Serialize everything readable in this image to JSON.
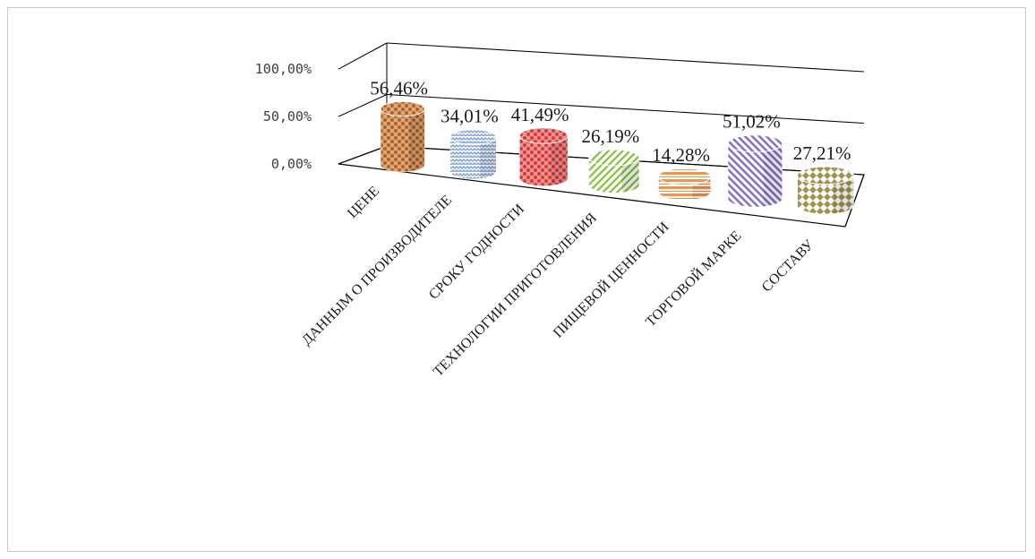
{
  "chart_data": {
    "type": "bar",
    "style": "3d-cylinder",
    "categories": [
      "ЦЕНЕ",
      "ДАННЫМ О ПРОИЗВОДИТЕЛЕ",
      "СРОКУ ГОДНОСТИ",
      "ТЕХНОЛОГИИ ПРИГОТОВЛЕНИЯ",
      "ПИЩЕВОЙ ЦЕННОСТИ",
      "ТОРГОВОЙ МАРКЕ",
      "СОСТАВУ"
    ],
    "values": [
      56.46,
      34.01,
      41.49,
      26.19,
      14.28,
      51.02,
      27.21
    ],
    "data_labels": [
      "56,46%",
      "34,01%",
      "41,49%",
      "26,19%",
      "14,28%",
      "51,02%",
      "27,21%"
    ],
    "yticks": [
      "0,00%",
      "50,00%",
      "100,00%"
    ],
    "ylim": [
      0,
      100
    ],
    "grid": true,
    "legend": "none",
    "colors": [
      "#b5611c",
      "#8aaad4",
      "#d83a3a",
      "#8ec44a",
      "#f0954a",
      "#8a72c4",
      "#a09450"
    ],
    "title": "",
    "xlabel": "",
    "ylabel": ""
  }
}
